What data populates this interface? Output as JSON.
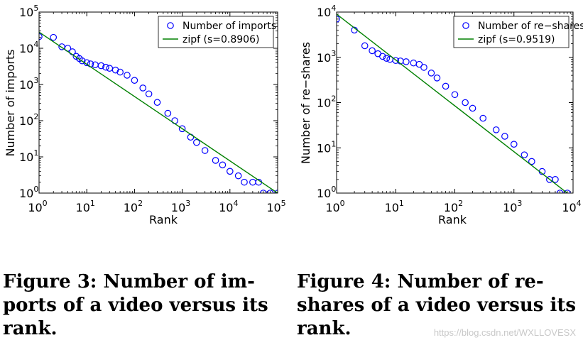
{
  "chart_data": [
    {
      "type": "scatter",
      "title": "",
      "xlabel": "Rank",
      "ylabel": "Number of imports",
      "xscale": "log",
      "yscale": "log",
      "xlim": [
        1,
        100000
      ],
      "ylim": [
        1,
        100000
      ],
      "x_ticks": [
        {
          "base": "10",
          "exp": "0"
        },
        {
          "base": "10",
          "exp": "1"
        },
        {
          "base": "10",
          "exp": "2"
        },
        {
          "base": "10",
          "exp": "3"
        },
        {
          "base": "10",
          "exp": "4"
        },
        {
          "base": "10",
          "exp": "5"
        }
      ],
      "y_ticks": [
        {
          "base": "10",
          "exp": "0"
        },
        {
          "base": "10",
          "exp": "1"
        },
        {
          "base": "10",
          "exp": "2"
        },
        {
          "base": "10",
          "exp": "3"
        },
        {
          "base": "10",
          "exp": "4"
        },
        {
          "base": "10",
          "exp": "5"
        }
      ],
      "legend": {
        "placement": "top-right",
        "entries": [
          "Number of imports",
          "zipf (s=0.8906)"
        ]
      },
      "series": [
        {
          "name": "Number of imports",
          "style": "markers",
          "color": "#0000ff",
          "points": [
            [
              1,
              21000
            ],
            [
              2,
              20000
            ],
            [
              3,
              11000
            ],
            [
              4,
              10000
            ],
            [
              5,
              8000
            ],
            [
              6,
              6000
            ],
            [
              7,
              5200
            ],
            [
              8,
              4500
            ],
            [
              10,
              4000
            ],
            [
              12,
              3700
            ],
            [
              15,
              3500
            ],
            [
              20,
              3300
            ],
            [
              25,
              3000
            ],
            [
              30,
              2800
            ],
            [
              40,
              2500
            ],
            [
              50,
              2200
            ],
            [
              70,
              1800
            ],
            [
              100,
              1300
            ],
            [
              150,
              800
            ],
            [
              200,
              550
            ],
            [
              300,
              320
            ],
            [
              500,
              160
            ],
            [
              700,
              100
            ],
            [
              1000,
              60
            ],
            [
              1500,
              35
            ],
            [
              2000,
              25
            ],
            [
              3000,
              15
            ],
            [
              5000,
              8
            ],
            [
              7000,
              6
            ],
            [
              10000,
              4
            ],
            [
              15000,
              3
            ],
            [
              20000,
              2
            ],
            [
              30000,
              2
            ],
            [
              40000,
              2
            ],
            [
              50000,
              1
            ],
            [
              70000,
              1
            ],
            [
              100000,
              1
            ]
          ]
        },
        {
          "name": "zipf (s=0.8906)",
          "style": "line",
          "color": "#008000",
          "points": [
            [
              1,
              28000
            ],
            [
              100000,
              1
            ]
          ]
        }
      ]
    },
    {
      "type": "scatter",
      "title": "",
      "xlabel": "Rank",
      "ylabel": "Number of re−shares",
      "xscale": "log",
      "yscale": "log",
      "xlim": [
        1,
        10000
      ],
      "ylim": [
        1,
        10000
      ],
      "x_ticks": [
        {
          "base": "10",
          "exp": "0"
        },
        {
          "base": "10",
          "exp": "1"
        },
        {
          "base": "10",
          "exp": "2"
        },
        {
          "base": "10",
          "exp": "3"
        },
        {
          "base": "10",
          "exp": "4"
        }
      ],
      "y_ticks": [
        {
          "base": "10",
          "exp": "0"
        },
        {
          "base": "10",
          "exp": "1"
        },
        {
          "base": "10",
          "exp": "2"
        },
        {
          "base": "10",
          "exp": "3"
        },
        {
          "base": "10",
          "exp": "4"
        }
      ],
      "legend": {
        "placement": "top-right",
        "entries": [
          "Number of re−shares",
          "zipf (s=0.9519)"
        ]
      },
      "series": [
        {
          "name": "Number of re−shares",
          "style": "markers",
          "color": "#0000ff",
          "points": [
            [
              1,
              7000
            ],
            [
              2,
              4000
            ],
            [
              3,
              1800
            ],
            [
              4,
              1400
            ],
            [
              5,
              1200
            ],
            [
              6,
              1050
            ],
            [
              7,
              950
            ],
            [
              8,
              900
            ],
            [
              10,
              850
            ],
            [
              12,
              830
            ],
            [
              15,
              800
            ],
            [
              20,
              750
            ],
            [
              25,
              700
            ],
            [
              30,
              600
            ],
            [
              40,
              450
            ],
            [
              50,
              350
            ],
            [
              70,
              230
            ],
            [
              100,
              150
            ],
            [
              150,
              100
            ],
            [
              200,
              75
            ],
            [
              300,
              45
            ],
            [
              500,
              25
            ],
            [
              700,
              18
            ],
            [
              1000,
              12
            ],
            [
              1500,
              7
            ],
            [
              2000,
              5
            ],
            [
              3000,
              3
            ],
            [
              4000,
              2
            ],
            [
              5000,
              2
            ],
            [
              6000,
              1
            ],
            [
              8000,
              1
            ]
          ]
        },
        {
          "name": "zipf (s=0.9519)",
          "style": "line",
          "color": "#008000",
          "points": [
            [
              1,
              9000
            ],
            [
              8000,
              1
            ]
          ]
        }
      ]
    }
  ],
  "captions": [
    {
      "label": "Figure 3:",
      "text": " Number of im- ports of a video versus its rank."
    },
    {
      "label": "Figure 4:",
      "text": " Number of re- shares of a video versus its rank."
    }
  ],
  "watermark": "https://blog.csdn.net/WXLLOVESX"
}
